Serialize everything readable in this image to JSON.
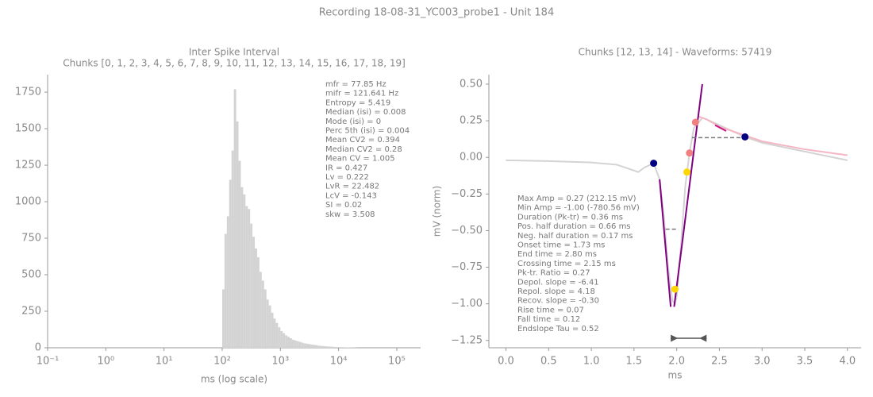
{
  "title": "Recording 18-08-31_YC003_probe1 - Unit 184",
  "chart_data": [
    {
      "type": "histogram",
      "title": "Inter Spike Interval",
      "subtitle": "Chunks [0, 1, 2, 3, 4, 5, 6, 7, 8, 9, 10, 11, 12, 13, 14, 15, 16, 17, 18, 19]",
      "x_label": "ms (log scale)",
      "xscale": "log",
      "color": "#d3d3d3",
      "xlim": [
        0.1,
        257000
      ],
      "ylim": [
        0,
        1870
      ],
      "xticks": [
        {
          "value": 0.1,
          "label": "10⁻¹"
        },
        {
          "value": 1,
          "label": "10⁰"
        },
        {
          "value": 10,
          "label": "10¹"
        },
        {
          "value": 100,
          "label": "10²"
        },
        {
          "value": 1000,
          "label": "10³"
        },
        {
          "value": 10000,
          "label": "10⁴"
        },
        {
          "value": 100000,
          "label": "10⁵"
        }
      ],
      "yticks": [
        0,
        250,
        500,
        750,
        1000,
        1250,
        1500,
        1750
      ],
      "bins": [
        100,
        109.6,
        120.2,
        131.8,
        144.5,
        158.5,
        173.8,
        190.5,
        208.9,
        229.1,
        251.2,
        275.4,
        302,
        331.1,
        363.1,
        398.1,
        436.5,
        478.6,
        524.8,
        575.4,
        631,
        691.8,
        758.6,
        831.8,
        912,
        1000,
        1096,
        1202,
        1318,
        1445,
        1585,
        1738,
        1905,
        2089,
        2291,
        2512,
        2754,
        3020,
        3311,
        3631,
        3981,
        4365,
        4786,
        5248,
        5754,
        6310,
        6918,
        7586,
        8318,
        9120,
        10000,
        10965,
        12023,
        13183,
        14454,
        15849,
        17378,
        19055,
        20893
      ],
      "counts": [
        400,
        780,
        900,
        1150,
        1350,
        1770,
        1550,
        1280,
        1100,
        1050,
        970,
        950,
        850,
        760,
        680,
        620,
        520,
        460,
        400,
        330,
        290,
        240,
        200,
        170,
        140,
        115,
        100,
        85,
        75,
        65,
        55,
        50,
        45,
        40,
        35,
        30,
        28,
        25,
        22,
        20,
        18,
        15,
        13,
        12,
        10,
        9,
        8,
        7,
        6,
        5,
        5,
        4,
        4,
        3,
        3,
        2,
        2,
        1
      ],
      "annotation": [
        "mfr = 77.85 Hz",
        "mifr = 121.641 Hz",
        "Entropy = 5.419",
        "Median (isi) = 0.008",
        "Mode (isi) = 0",
        "Perc 5th (isi) = 0.004",
        "Mean CV2 = 0.394",
        "Median CV2 = 0.28",
        "Mean CV = 1.005",
        "IR = 0.427",
        "Lv = 0.222",
        "LvR = 22.482",
        "LcV = -0.143",
        "SI = 0.02",
        "skw = 3.508"
      ]
    },
    {
      "type": "line",
      "title": "Chunks [12, 13, 14] - Waveforms: 57419",
      "x_label": "ms",
      "y_label": "mV (norm)",
      "xlim": [
        -0.2,
        4.16
      ],
      "ylim": [
        -1.3,
        0.565
      ],
      "xticks": [
        {
          "value": 0,
          "label": "0.0"
        },
        0.5,
        {
          "value": 1,
          "label": "1.0"
        },
        1.5,
        {
          "value": 2,
          "label": "2.0"
        },
        2.5,
        {
          "value": 3,
          "label": "3.0"
        },
        3.5,
        {
          "value": 4,
          "label": "4.0"
        }
      ],
      "yticks": [
        {
          "value": -1.25,
          "label": "−1.25"
        },
        {
          "value": -1,
          "label": "−1.00"
        },
        {
          "value": -0.75,
          "label": "−0.75"
        },
        {
          "value": -0.5,
          "label": "−0.50"
        },
        {
          "value": -0.25,
          "label": "−0.25"
        },
        {
          "value": 0,
          "label": "0.00"
        },
        {
          "value": 0.25,
          "label": "0.25"
        },
        {
          "value": 0.5,
          "label": "0.50"
        }
      ],
      "series": [
        {
          "mode": "line",
          "color": "#d3d3d3",
          "x": [
            0,
            0.5,
            1.0,
            1.3,
            1.5,
            1.55,
            1.62,
            1.73,
            1.8,
            1.85,
            1.9,
            1.95,
            1.98,
            2.0,
            2.05,
            2.1,
            2.15,
            2.2,
            2.3,
            2.35,
            2.5,
            2.8,
            3.0,
            3.5,
            4.0
          ],
          "values": [
            -0.02,
            -0.025,
            -0.035,
            -0.05,
            -0.09,
            -0.1,
            -0.07,
            -0.04,
            -0.15,
            -0.4,
            -0.75,
            -0.98,
            -1.0,
            -0.95,
            -0.6,
            -0.2,
            0.03,
            0.2,
            0.27,
            0.26,
            0.22,
            0.14,
            0.1,
            0.04,
            -0.02
          ]
        },
        {
          "mode": "line",
          "color": "#f4b6c2",
          "x": [
            2.25,
            2.35,
            2.5,
            2.8,
            3.0,
            3.5,
            4.0
          ],
          "values": [
            0.28,
            0.26,
            0.21,
            0.15,
            0.11,
            0.055,
            0.015
          ]
        },
        {
          "mode": "line",
          "color": "#800080",
          "x": [
            1.8,
            1.93
          ],
          "values": [
            -0.15,
            -1.02
          ]
        },
        {
          "mode": "line",
          "color": "#800080",
          "x": [
            1.97,
            2.3
          ],
          "values": [
            -1.02,
            0.5
          ]
        },
        {
          "mode": "line",
          "color": "#c71585",
          "x": [
            2.45,
            2.58
          ],
          "values": [
            0.22,
            0.18
          ]
        },
        {
          "mode": "dashed",
          "color": "#777777",
          "x": [
            1.87,
            2.0
          ],
          "values": [
            -0.49,
            -0.49
          ]
        },
        {
          "mode": "dashed",
          "color": "#777777",
          "x": [
            2.18,
            2.8
          ],
          "values": [
            0.135,
            0.135
          ]
        },
        {
          "mode": "markers",
          "color": "#000080",
          "x": [
            1.73,
            2.8
          ],
          "values": [
            -0.04,
            0.14
          ]
        },
        {
          "mode": "markers",
          "color": "#ffd700",
          "x": [
            2.12,
            1.98
          ],
          "values": [
            -0.1,
            -0.9
          ]
        },
        {
          "mode": "markers",
          "color": "#f08080",
          "x": [
            2.15,
            2.22
          ],
          "values": [
            0.03,
            0.24
          ]
        },
        {
          "mode": "arrow",
          "color": "#555555",
          "x": [
            1.93,
            2.35
          ],
          "values": [
            -1.235,
            -1.235
          ]
        }
      ],
      "annotation": [
        "Max Amp = 0.27 (212.15 mV)",
        "Min Amp = -1.00 (-780.56 mV)",
        "Duration (Pk-tr) = 0.36 ms",
        "Pos. half duration = 0.66 ms",
        "Neg. half duration = 0.17 ms",
        "Onset time = 1.73 ms",
        "End time = 2.80 ms",
        "Crossing time = 2.15 ms",
        "Pk-tr. Ratio = 0.27",
        "Depol. slope = -6.41",
        "Repol. slope = 4.18",
        "Recov. slope = -0.30",
        "Rise time = 0.07",
        "Fall time = 0.12",
        "Endslope Tau = 0.52"
      ]
    }
  ]
}
